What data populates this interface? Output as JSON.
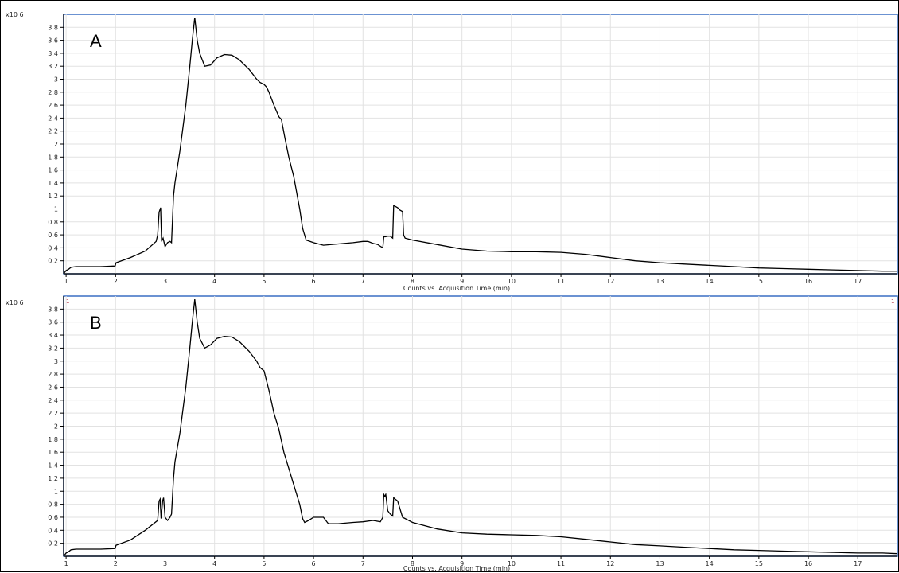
{
  "chart_data": [
    {
      "type": "line",
      "panel_label": "A",
      "y_scale_label": "x10 6",
      "xlabel": "Counts vs. Acquisition Time (min)",
      "xlim": [
        0.95,
        17.8
      ],
      "ylim": [
        0,
        4.0
      ],
      "x_ticks": [
        1,
        2,
        3,
        4,
        5,
        6,
        7,
        8,
        9,
        10,
        11,
        12,
        13,
        14,
        15,
        16,
        17
      ],
      "y_ticks": [
        0.2,
        0.4,
        0.6,
        0.8,
        1,
        1.2,
        1.4,
        1.6,
        1.8,
        2,
        2.2,
        2.4,
        2.6,
        2.8,
        3,
        3.2,
        3.4,
        3.6,
        3.8
      ],
      "grid": true,
      "marker_left": "1",
      "marker_right": "1",
      "series": [
        {
          "x": [
            0.95,
            1.0,
            1.05,
            1.1,
            1.2,
            1.3,
            1.5,
            1.7,
            1.99,
            2.01,
            2.3,
            2.6,
            2.82,
            2.85,
            2.88,
            2.91,
            2.93,
            2.96,
            3.0,
            3.05,
            3.1,
            3.13,
            3.17,
            3.2,
            3.3,
            3.42,
            3.5,
            3.55,
            3.6,
            3.65,
            3.7,
            3.8,
            3.92,
            4.05,
            4.2,
            4.35,
            4.5,
            4.7,
            4.85,
            4.92,
            5.0,
            5.05,
            5.1,
            5.2,
            5.3,
            5.35,
            5.42,
            5.5,
            5.6,
            5.72,
            5.78,
            5.8,
            5.85,
            6.0,
            6.2,
            6.5,
            6.8,
            7.0,
            7.1,
            7.2,
            7.3,
            7.4,
            7.42,
            7.45,
            7.5,
            7.55,
            7.6,
            7.62,
            7.65,
            7.7,
            7.75,
            7.8,
            7.82,
            7.85,
            8.0,
            8.5,
            9.0,
            9.5,
            10.0,
            10.5,
            11.0,
            11.5,
            12.0,
            12.5,
            13.0,
            13.5,
            14.0,
            14.5,
            15.0,
            15.5,
            16.0,
            16.5,
            17.0,
            17.5,
            17.8
          ],
          "y": [
            0.0,
            0.05,
            0.07,
            0.1,
            0.11,
            0.11,
            0.11,
            0.11,
            0.12,
            0.17,
            0.25,
            0.35,
            0.5,
            0.6,
            0.95,
            1.02,
            0.5,
            0.55,
            0.42,
            0.48,
            0.5,
            0.48,
            1.2,
            1.4,
            1.9,
            2.6,
            3.2,
            3.6,
            3.95,
            3.6,
            3.4,
            3.2,
            3.22,
            3.33,
            3.38,
            3.37,
            3.3,
            3.15,
            3.0,
            2.95,
            2.92,
            2.88,
            2.8,
            2.6,
            2.42,
            2.38,
            2.1,
            1.8,
            1.5,
            1.0,
            0.7,
            0.65,
            0.52,
            0.48,
            0.44,
            0.46,
            0.48,
            0.5,
            0.5,
            0.47,
            0.45,
            0.4,
            0.57,
            0.57,
            0.58,
            0.58,
            0.55,
            1.05,
            1.04,
            1.02,
            0.98,
            0.96,
            0.6,
            0.55,
            0.52,
            0.45,
            0.38,
            0.35,
            0.34,
            0.34,
            0.33,
            0.3,
            0.25,
            0.2,
            0.17,
            0.15,
            0.13,
            0.11,
            0.09,
            0.08,
            0.07,
            0.06,
            0.05,
            0.04,
            0.04
          ]
        }
      ]
    },
    {
      "type": "line",
      "panel_label": "B",
      "y_scale_label": "x10 6",
      "xlabel": "Counts vs. Acquisition Time (min)",
      "xlim": [
        0.95,
        17.8
      ],
      "ylim": [
        0,
        4.0
      ],
      "x_ticks": [
        1,
        2,
        3,
        4,
        5,
        6,
        7,
        8,
        9,
        10,
        11,
        12,
        13,
        14,
        15,
        16,
        17
      ],
      "y_ticks": [
        0.2,
        0.4,
        0.6,
        0.8,
        1,
        1.2,
        1.4,
        1.6,
        1.8,
        2,
        2.2,
        2.4,
        2.6,
        2.8,
        3,
        3.2,
        3.4,
        3.6,
        3.8
      ],
      "grid": true,
      "marker_left": "1",
      "marker_right": "1",
      "series": [
        {
          "x": [
            0.95,
            1.0,
            1.05,
            1.1,
            1.2,
            1.3,
            1.5,
            1.7,
            1.99,
            2.01,
            2.3,
            2.6,
            2.85,
            2.88,
            2.9,
            2.92,
            2.95,
            2.97,
            3.0,
            3.05,
            3.1,
            3.13,
            3.17,
            3.2,
            3.3,
            3.42,
            3.5,
            3.55,
            3.6,
            3.65,
            3.7,
            3.8,
            3.92,
            4.05,
            4.2,
            4.35,
            4.5,
            4.7,
            4.85,
            4.92,
            5.0,
            5.05,
            5.1,
            5.2,
            5.3,
            5.4,
            5.5,
            5.6,
            5.72,
            5.78,
            5.82,
            5.9,
            6.0,
            6.2,
            6.3,
            6.5,
            6.8,
            7.0,
            7.2,
            7.35,
            7.4,
            7.42,
            7.44,
            7.46,
            7.5,
            7.55,
            7.6,
            7.62,
            7.65,
            7.7,
            7.8,
            8.0,
            8.5,
            9.0,
            9.5,
            10.0,
            10.5,
            11.0,
            11.5,
            12.0,
            12.5,
            13.0,
            13.5,
            14.0,
            14.5,
            15.0,
            15.5,
            16.0,
            16.5,
            17.0,
            17.5,
            17.8
          ],
          "y": [
            0.0,
            0.05,
            0.07,
            0.1,
            0.11,
            0.11,
            0.11,
            0.11,
            0.12,
            0.17,
            0.25,
            0.4,
            0.55,
            0.85,
            0.88,
            0.58,
            0.85,
            0.9,
            0.6,
            0.55,
            0.6,
            0.65,
            1.2,
            1.45,
            1.9,
            2.6,
            3.2,
            3.6,
            3.95,
            3.6,
            3.35,
            3.2,
            3.25,
            3.35,
            3.38,
            3.37,
            3.3,
            3.15,
            3.0,
            2.9,
            2.85,
            2.7,
            2.55,
            2.2,
            1.95,
            1.6,
            1.35,
            1.1,
            0.8,
            0.58,
            0.52,
            0.55,
            0.6,
            0.6,
            0.5,
            0.5,
            0.52,
            0.53,
            0.55,
            0.53,
            0.6,
            0.95,
            0.92,
            0.95,
            0.7,
            0.65,
            0.62,
            0.9,
            0.88,
            0.85,
            0.6,
            0.52,
            0.42,
            0.36,
            0.34,
            0.33,
            0.32,
            0.3,
            0.26,
            0.22,
            0.18,
            0.16,
            0.14,
            0.12,
            0.1,
            0.09,
            0.08,
            0.07,
            0.06,
            0.05,
            0.05,
            0.04
          ]
        }
      ]
    }
  ]
}
